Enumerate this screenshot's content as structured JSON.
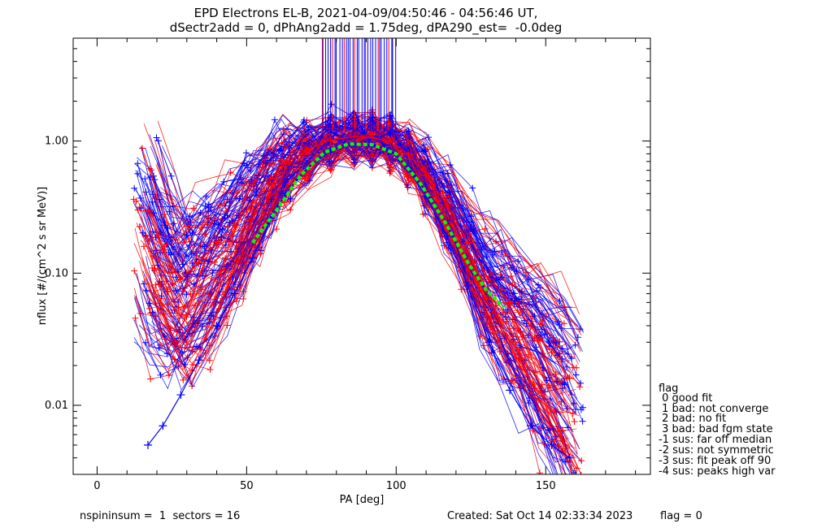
{
  "title_line1": "EPD Electrons EL-B, 2021-04-09/04:50:46 - 04:56:46 UT,",
  "title_line2": "dSectr2add = 0, dPhAng2add = 1.75deg, dPA290_est=  -0.0deg",
  "legend": {
    "title": "flag",
    "items": [
      " 0 good fit",
      " 1 bad: not converge",
      " 2 bad: no fit",
      " 3 bad: bad fgm state",
      "-1 sus: far off median",
      "-2 sus: not symmetric",
      "-3 sus: fit peak off 90",
      "-4 sus: peaks high var"
    ]
  },
  "footer": {
    "left": "nspininsum =  1  sectors = 16",
    "created": "Created: Sat Oct 14 02:33:34 2023",
    "flag": "flag = 0"
  },
  "colors": {
    "series_red": "#ff0000",
    "series_blue": "#0000ff",
    "fit_green": "#00ff00",
    "axis": "#000000"
  },
  "chart_data": {
    "type": "line",
    "title": "EPD Electrons EL-B, 2021-04-09/04:50:46 - 04:56:46 UT, dSectr2add = 0, dPhAng2add = 1.75deg, dPA290_est=  -0.0deg",
    "xlabel": "PA [deg]",
    "ylabel": "nflux [#/(cm^2 s sr MeV)]",
    "xlim": [
      -8,
      185
    ],
    "ylim": [
      0.003,
      6
    ],
    "yscale": "log",
    "xticks": [
      "0",
      "50",
      "100",
      "150"
    ],
    "yticks": [
      "0.01",
      "0.10",
      "1.00"
    ],
    "series": [
      {
        "name": "",
        "color": "red",
        "marker": "+",
        "x": [
          17,
          22,
          28,
          34,
          40,
          46,
          52,
          58,
          63,
          70,
          78,
          86,
          92,
          98,
          104,
          110,
          117,
          124,
          131,
          138,
          145,
          152,
          158
        ],
        "y": [
          0.3,
          0.15,
          0.09,
          0.12,
          0.17,
          0.23,
          0.34,
          0.52,
          0.68,
          0.85,
          1.02,
          1.08,
          1.06,
          0.99,
          0.8,
          0.55,
          0.33,
          0.17,
          0.09,
          0.06,
          0.04,
          0.025,
          0.016
        ]
      },
      {
        "name": "",
        "color": "blue",
        "marker": "+",
        "x": [
          17,
          22,
          28,
          34,
          40,
          46,
          52,
          58,
          63,
          70,
          78,
          86,
          92,
          98,
          104,
          110,
          117,
          124,
          131,
          138,
          145,
          152,
          158
        ],
        "y": [
          0.005,
          0.007,
          0.012,
          0.022,
          0.04,
          0.07,
          0.13,
          0.26,
          0.4,
          0.62,
          0.85,
          0.95,
          0.93,
          0.85,
          0.62,
          0.38,
          0.19,
          0.08,
          0.03,
          0.013,
          0.007,
          0.005,
          0.004
        ]
      },
      {
        "name": "",
        "color": "green",
        "marker": "none",
        "x": [
          52,
          60,
          68,
          76,
          84,
          92,
          100,
          108,
          116,
          124,
          130,
          136
        ],
        "y": [
          0.17,
          0.3,
          0.55,
          0.82,
          0.95,
          0.94,
          0.8,
          0.48,
          0.25,
          0.12,
          0.075,
          0.055
        ]
      }
    ],
    "annotations": []
  }
}
